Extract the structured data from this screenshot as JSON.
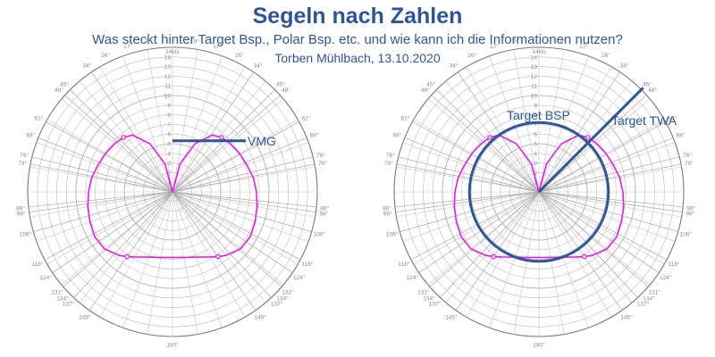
{
  "header": {
    "title": "Segeln nach Zahlen",
    "subtitle": "Was steckt hinter Target Bsp., Polar Bsp. etc. und wie kann ich die Informationen nutzen?",
    "author": "Torben Mühlbach, 13.10.2020"
  },
  "colors": {
    "polar": "#e61ce6",
    "annotation": "#2f5597",
    "grid": "#9a9a9a"
  },
  "chart_data": {
    "type": "polar-diagram",
    "speed_unit_label": "14kts",
    "radial_ticks": [
      "1",
      "2",
      "3",
      "4",
      "5",
      "6",
      "7",
      "8",
      "9",
      "10",
      "11",
      "12",
      "13",
      "14"
    ],
    "angle_tick_labels": [
      "9°",
      "17°",
      "26°",
      "34°",
      "45°",
      "48°",
      "61°",
      "68°",
      "76°",
      "79°",
      "96°",
      "98°",
      "106°",
      "118°",
      "124°",
      "131°",
      "134°",
      "137°",
      "145°",
      "180°"
    ],
    "polar_curve": {
      "angles_deg": [
        0,
        15,
        25,
        35,
        42,
        50,
        60,
        70,
        80,
        90,
        100,
        110,
        120,
        130,
        140,
        145,
        150,
        160,
        170,
        180
      ],
      "boat_speed": [
        0,
        3.0,
        5.5,
        7.2,
        7.6,
        7.8,
        8.0,
        8.2,
        8.5,
        8.7,
        8.9,
        9.1,
        9.3,
        9.2,
        8.6,
        8.2,
        7.8,
        7.2,
        6.9,
        6.8
      ],
      "markers_deg": [
        42,
        145
      ]
    },
    "left": {
      "vmg_label": "VMG",
      "vmg_value": 5.3
    },
    "right": {
      "target_bsp_label": "Target BSP",
      "target_bsp_value": 7.2,
      "target_twa_label": "Target TWA",
      "target_twa_deg": 45
    }
  }
}
